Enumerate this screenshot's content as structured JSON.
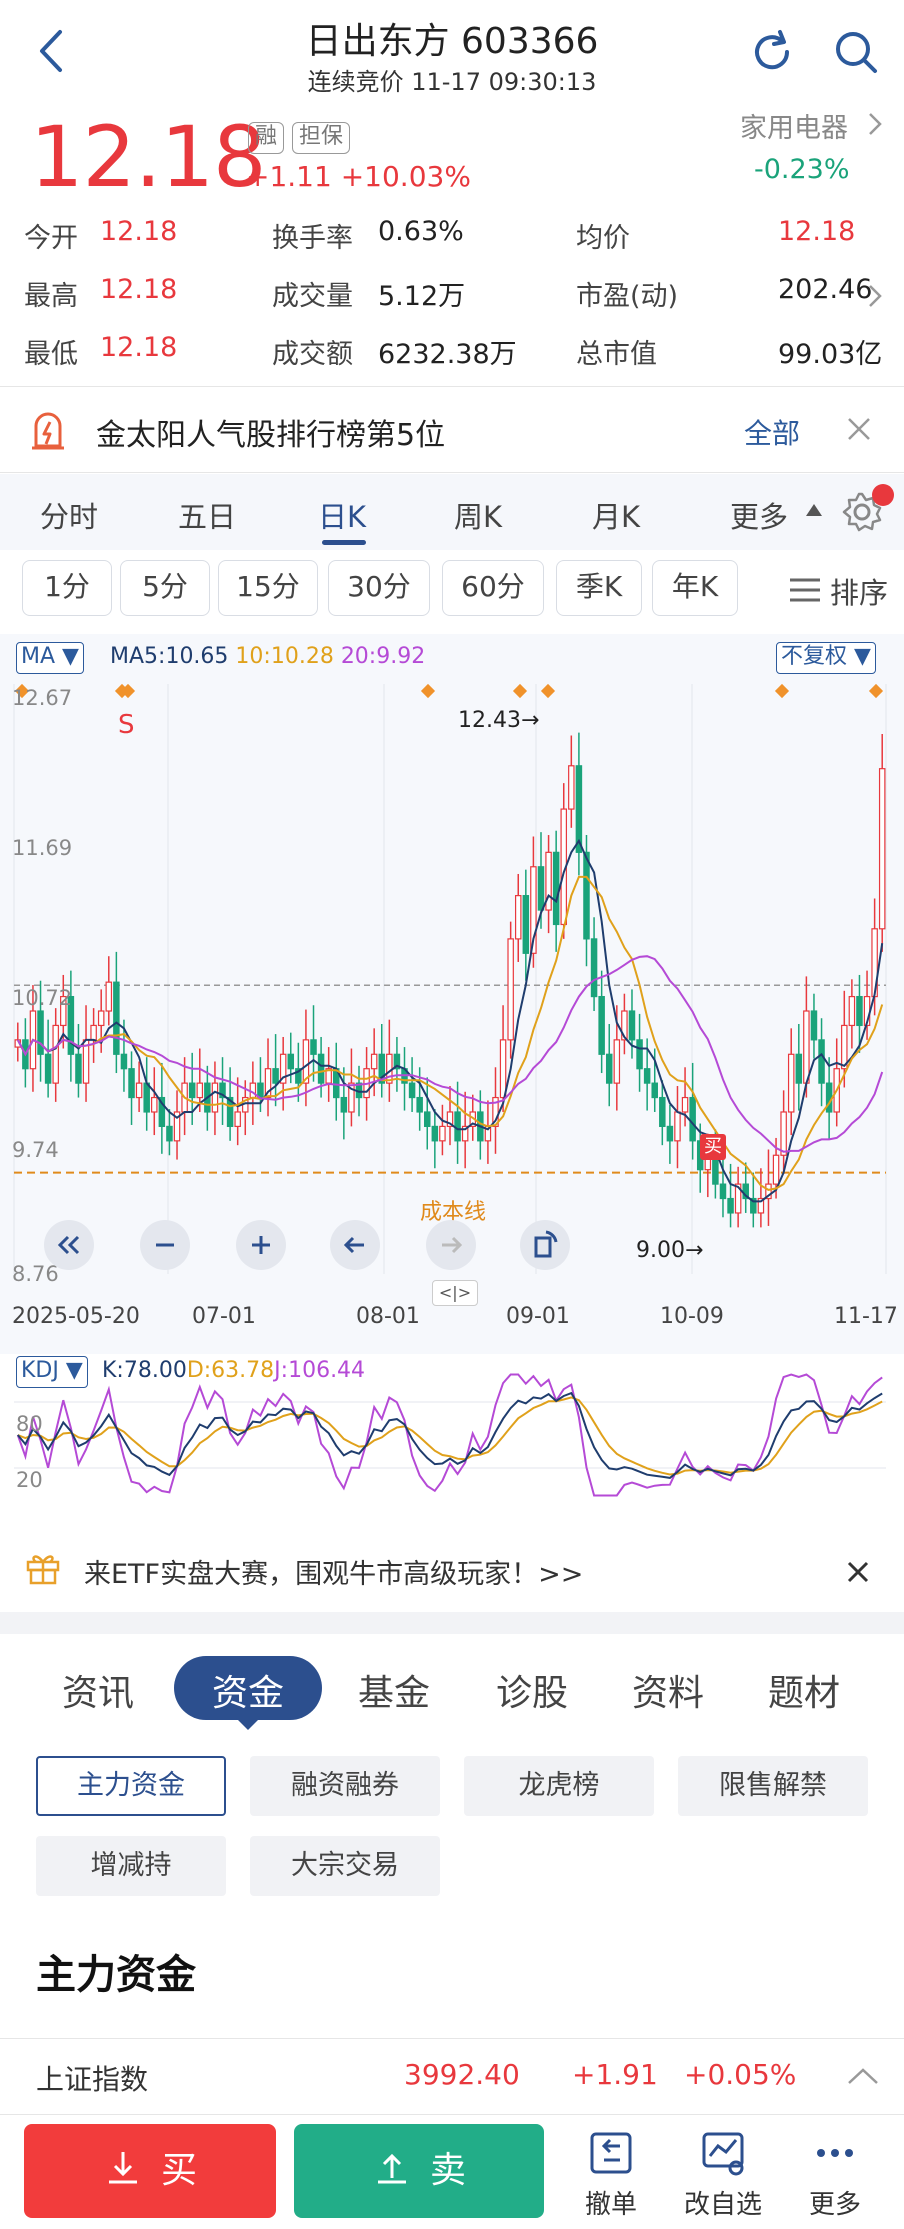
{
  "header": {
    "title": "日出东方 603366",
    "subtitle": "连续竞价 11-17 09:30:13"
  },
  "quote": {
    "price": "12.18",
    "tag_rong": "融",
    "tag_dan": "担保",
    "change": "+1.11 +10.03%",
    "sector": "家用电器",
    "sector_change": "-0.23%",
    "rows": [
      [
        {
          "label": "今开",
          "value": "12.18"
        },
        {
          "label": "换手率",
          "value": "0.63%"
        },
        {
          "label": "均价",
          "value": "12.18"
        }
      ],
      [
        {
          "label": "最高",
          "value": "12.18"
        },
        {
          "label": "成交量",
          "value": "5.12万"
        },
        {
          "label": "市盈(动)",
          "value": "202.46"
        }
      ],
      [
        {
          "label": "最低",
          "value": "12.18"
        },
        {
          "label": "成交额",
          "value": "6232.38万"
        },
        {
          "label": "总市值",
          "value": "99.03亿"
        }
      ]
    ]
  },
  "banner": {
    "text": "金太阳人气股排行榜第5位",
    "all_label": "全部"
  },
  "period_tabs": [
    "分时",
    "五日",
    "日K",
    "周K",
    "月K",
    "更多"
  ],
  "minute_buttons": [
    "1分",
    "5分",
    "15分",
    "30分",
    "60分",
    "季K",
    "年K"
  ],
  "sort_label": "排序",
  "chart": {
    "ma_box": "MA",
    "ma_legend": {
      "ma5": "MA5:10.65",
      "ma10": "10:10.28",
      "ma20": "20:9.92"
    },
    "adjust_box": "不复权",
    "y_ticks": [
      "12.67",
      "11.69",
      "10.72",
      "9.74",
      "8.76"
    ],
    "x_ticks": [
      "2025-05-20",
      "07-01",
      "08-01",
      "09-01",
      "10-09",
      "11-17"
    ],
    "high_label": "12.43→",
    "low_label": "9.00→",
    "cost_label": "成本线",
    "sell_marker": "S",
    "buy_marker": "买",
    "kdj_box": "KDJ",
    "kdj_legend": {
      "k": "K:78.00",
      "d": "D:63.78",
      "j": "J:106.44"
    },
    "kdj_ticks": [
      "80",
      "20"
    ],
    "colors": {
      "up": "#e8383d",
      "down": "#1aa37a",
      "ma5": "#1f3d6e",
      "ma10": "#e0a11b",
      "ma20": "#b54ad6"
    }
  },
  "chart_data": {
    "type": "candlestick",
    "x_range": [
      "2025-05-20",
      "11-17"
    ],
    "ylim": [
      8.76,
      12.67
    ],
    "y_ticks": [
      12.67,
      11.69,
      10.72,
      9.74,
      8.76
    ],
    "max_marked": 12.43,
    "min_marked": 9.0,
    "ma": {
      "MA5": 10.65,
      "MA10": 10.28,
      "MA20": 9.92
    },
    "kdj": {
      "K": 78.0,
      "D": 63.78,
      "J": 106.44
    },
    "close_series": [
      10.3,
      10.1,
      10.5,
      10.2,
      10.0,
      10.4,
      10.6,
      10.2,
      10.0,
      10.3,
      10.4,
      10.5,
      10.7,
      10.2,
      10.1,
      9.9,
      10.0,
      9.8,
      9.9,
      9.7,
      9.6,
      9.8,
      10.0,
      9.9,
      10.0,
      9.8,
      10.0,
      9.9,
      9.7,
      9.8,
      9.9,
      10.0,
      9.9,
      10.1,
      10.0,
      10.2,
      10.1,
      10.0,
      10.3,
      10.2,
      10.0,
      10.1,
      9.9,
      9.8,
      10.0,
      9.9,
      10.1,
      10.2,
      10.0,
      10.2,
      10.1,
      10.0,
      9.9,
      9.8,
      9.7,
      9.6,
      9.7,
      9.8,
      9.6,
      9.7,
      9.8,
      9.6,
      9.7,
      9.9,
      10.3,
      11.0,
      11.3,
      10.9,
      11.5,
      11.2,
      11.6,
      11.1,
      11.9,
      12.2,
      11.6,
      11.0,
      10.6,
      10.2,
      10.0,
      10.3,
      10.5,
      10.3,
      10.1,
      10.0,
      9.9,
      9.7,
      9.6,
      9.8,
      9.9,
      9.6,
      9.4,
      9.5,
      9.3,
      9.2,
      9.1,
      9.3,
      9.2,
      9.1,
      9.2,
      9.3,
      9.5,
      9.8,
      10.2,
      10.0,
      10.5,
      10.3,
      10.0,
      9.8,
      10.1,
      10.4,
      10.6,
      10.4,
      10.6,
      11.07,
      12.18
    ]
  },
  "promo": {
    "text": "来ETF实盘大赛，围观牛市高级玩家！>>"
  },
  "info_tabs": [
    "资讯",
    "资金",
    "基金",
    "诊股",
    "资料",
    "题材"
  ],
  "sub_buttons": [
    "主力资金",
    "融资融券",
    "龙虎榜",
    "限售解禁",
    "增减持",
    "大宗交易"
  ],
  "section_title": "主力资金",
  "index_bar": {
    "name": "上证指数",
    "value": "3992.40",
    "change": "+1.91",
    "pct": "+0.05%"
  },
  "bottom_bar": {
    "buy": "买",
    "sell": "卖",
    "cancel": "撤单",
    "watchlist": "改自选",
    "more": "更多"
  }
}
